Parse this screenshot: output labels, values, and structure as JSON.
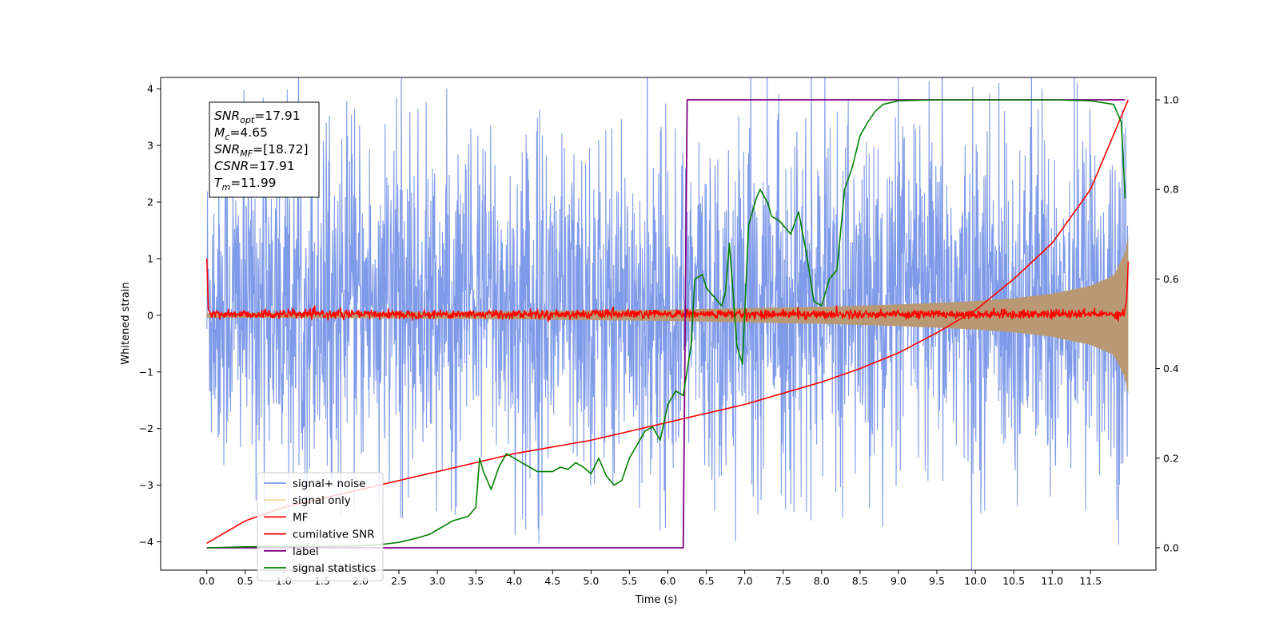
{
  "chart_data": {
    "type": "line",
    "xlabel": "Time (s)",
    "ylabel_left": "Whitened strain",
    "ylabel_right": "",
    "xlim": [
      -0.6,
      12.35
    ],
    "ylim_left": [
      -4.5,
      4.2
    ],
    "ylim_right": [
      -0.05,
      1.05
    ],
    "x_ticks": [
      0.0,
      0.5,
      1.0,
      1.5,
      2.0,
      2.5,
      3.0,
      3.5,
      4.0,
      4.5,
      5.0,
      5.5,
      6.0,
      6.5,
      7.0,
      7.5,
      8.0,
      8.5,
      9.0,
      9.5,
      10.0,
      10.5,
      11.0,
      11.5
    ],
    "y_ticks_left": [
      -4,
      -3,
      -2,
      -1,
      0,
      1,
      2,
      3,
      4
    ],
    "y_ticks_right": [
      0.0,
      0.2,
      0.4,
      0.6,
      0.8,
      1.0
    ],
    "grid": false,
    "legend_position": "lower-left",
    "annotation": [
      {
        "base": "SNR",
        "sub": "opt",
        "value": "=17.91"
      },
      {
        "base": "M",
        "sub": "c",
        "value": "=4.65"
      },
      {
        "base": "SNR",
        "sub": "MF",
        "value": "=[18.72]"
      },
      {
        "base": "CSNR",
        "sub": "",
        "value": "=17.91"
      },
      {
        "base": "T",
        "sub": "m",
        "value": "=11.99"
      }
    ],
    "series": [
      {
        "name": "signal+ noise",
        "axis": "left",
        "color": "#7895e8",
        "style": "dense noise, roughly within [-2.5, 3], extremes near ±3.7",
        "x_range": [
          0.0,
          11.99
        ],
        "envelope": {
          "x": [
            0.0,
            2.0,
            4.0,
            6.0,
            8.0,
            10.0,
            11.99
          ],
          "upper": [
            2.8,
            2.8,
            2.8,
            2.8,
            2.8,
            3.0,
            3.3
          ],
          "lower": [
            -2.4,
            -2.4,
            -2.4,
            -2.4,
            -2.4,
            -2.5,
            -2.7
          ]
        }
      },
      {
        "name": "signal only",
        "axis": "left",
        "color": "#ffc060",
        "style": "chirp with growing amplitude, visible as tan band",
        "envelope": {
          "x": [
            0.0,
            2.0,
            4.0,
            6.0,
            8.0,
            9.0,
            10.0,
            10.5,
            11.0,
            11.5,
            11.8,
            11.95,
            11.99
          ],
          "amplitude": [
            0.04,
            0.05,
            0.07,
            0.1,
            0.15,
            0.19,
            0.25,
            0.3,
            0.38,
            0.52,
            0.7,
            1.1,
            1.4
          ]
        }
      },
      {
        "name": "MF",
        "axis": "left",
        "color": "#ff0000",
        "style": "flat noisy line near 0 (±0.1), spike to 1.0 at start and ~1.0 at end",
        "x": [
          0.0,
          0.02,
          0.1,
          11.95,
          11.99
        ],
        "y": [
          1.0,
          0.1,
          0.05,
          0.1,
          0.95
        ]
      },
      {
        "name": "cumilative SNR",
        "axis": "right",
        "color": "#ff0000",
        "x": [
          0.0,
          0.5,
          1.0,
          1.5,
          2.0,
          2.5,
          3.0,
          3.5,
          4.0,
          4.5,
          5.0,
          5.5,
          6.0,
          6.5,
          7.0,
          7.5,
          8.0,
          8.5,
          9.0,
          9.5,
          10.0,
          10.5,
          11.0,
          11.5,
          11.99
        ],
        "y": [
          0.01,
          0.06,
          0.09,
          0.11,
          0.13,
          0.15,
          0.17,
          0.19,
          0.21,
          0.225,
          0.24,
          0.26,
          0.28,
          0.3,
          0.32,
          0.345,
          0.37,
          0.4,
          0.435,
          0.48,
          0.53,
          0.6,
          0.68,
          0.8,
          1.0
        ]
      },
      {
        "name": "label",
        "axis": "right",
        "color": "#800080",
        "x": [
          0.0,
          6.2,
          6.25,
          11.95
        ],
        "y": [
          0.0,
          0.0,
          1.0,
          1.0
        ]
      },
      {
        "name": "signal statistics",
        "axis": "right",
        "color": "#008000",
        "x": [
          0.0,
          0.5,
          1.0,
          1.5,
          2.0,
          2.3,
          2.5,
          2.7,
          2.9,
          3.0,
          3.1,
          3.2,
          3.3,
          3.4,
          3.5,
          3.55,
          3.6,
          3.7,
          3.8,
          3.9,
          4.0,
          4.1,
          4.2,
          4.3,
          4.4,
          4.5,
          4.6,
          4.7,
          4.8,
          4.9,
          5.0,
          5.1,
          5.2,
          5.3,
          5.4,
          5.5,
          5.6,
          5.7,
          5.8,
          5.9,
          6.0,
          6.1,
          6.2,
          6.3,
          6.35,
          6.45,
          6.5,
          6.6,
          6.7,
          6.75,
          6.8,
          6.9,
          6.97,
          7.05,
          7.15,
          7.2,
          7.3,
          7.35,
          7.45,
          7.5,
          7.6,
          7.7,
          7.8,
          7.9,
          8.0,
          8.1,
          8.2,
          8.3,
          8.4,
          8.5,
          8.6,
          8.7,
          8.8,
          9.0,
          9.5,
          10.0,
          10.5,
          11.0,
          11.5,
          11.8,
          11.9,
          11.95
        ],
        "y": [
          0.0,
          0.002,
          0.003,
          0.003,
          0.004,
          0.008,
          0.012,
          0.02,
          0.03,
          0.04,
          0.05,
          0.06,
          0.065,
          0.07,
          0.09,
          0.2,
          0.17,
          0.13,
          0.18,
          0.21,
          0.2,
          0.19,
          0.18,
          0.17,
          0.17,
          0.17,
          0.18,
          0.175,
          0.19,
          0.18,
          0.165,
          0.2,
          0.16,
          0.14,
          0.15,
          0.2,
          0.23,
          0.26,
          0.27,
          0.24,
          0.32,
          0.35,
          0.34,
          0.45,
          0.6,
          0.61,
          0.58,
          0.56,
          0.54,
          0.57,
          0.68,
          0.45,
          0.41,
          0.72,
          0.78,
          0.8,
          0.77,
          0.74,
          0.73,
          0.72,
          0.7,
          0.75,
          0.66,
          0.55,
          0.54,
          0.6,
          0.62,
          0.8,
          0.85,
          0.92,
          0.95,
          0.975,
          0.99,
          0.998,
          1.0,
          1.0,
          1.0,
          1.0,
          0.998,
          0.99,
          0.95,
          0.78
        ]
      }
    ]
  }
}
